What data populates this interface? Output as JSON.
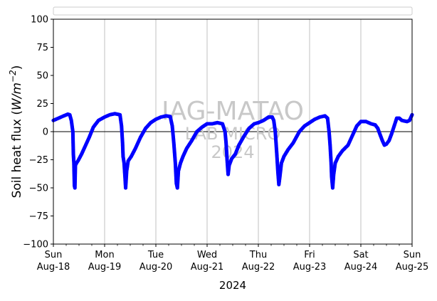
{
  "chart_data": {
    "type": "scatter",
    "title": "",
    "xlabel": "2024",
    "ylabel": "Soil heat flux (W/m⁻²)",
    "ylabel_parts": {
      "main": "Soil heat flux (",
      "unit": "W/m",
      "exp": "−2",
      "close": ")"
    },
    "ylim": [
      -100,
      100
    ],
    "y_ticks": [
      100,
      75,
      50,
      25,
      0,
      -25,
      -50,
      -75,
      -100
    ],
    "y_tick_labels": [
      "100",
      "75",
      "50",
      "25",
      "0",
      "−25",
      "−50",
      "−75",
      "−100"
    ],
    "xlim_days": [
      0,
      7
    ],
    "x_ticks": [
      {
        "day": 0,
        "line1": "Sun",
        "line2": "Aug-18"
      },
      {
        "day": 1,
        "line1": "Mon",
        "line2": "Aug-19"
      },
      {
        "day": 2,
        "line1": "Tue",
        "line2": "Aug-20"
      },
      {
        "day": 3,
        "line1": "Wed",
        "line2": "Aug-21"
      },
      {
        "day": 4,
        "line1": "Thu",
        "line2": "Aug-22"
      },
      {
        "day": 5,
        "line1": "Fri",
        "line2": "Aug-23"
      },
      {
        "day": 6,
        "line1": "Sat",
        "line2": "Aug-24"
      },
      {
        "day": 7,
        "line1": "Sun",
        "line2": "Aug-25"
      }
    ],
    "vertical_grid": true,
    "horizontal_line_at": 0,
    "legend_placement": "top",
    "legend_entries": [],
    "series": [
      {
        "color": "#0000ff",
        "marker": "dot",
        "days": [
          [
            0.0,
            10
          ],
          [
            0.1,
            12
          ],
          [
            0.2,
            14
          ],
          [
            0.28,
            15.5
          ],
          [
            0.32,
            15
          ],
          [
            0.35,
            10
          ],
          [
            0.38,
            0
          ],
          [
            0.39,
            -20
          ],
          [
            0.4,
            -28
          ],
          [
            0.41,
            -48
          ],
          [
            0.42,
            -50
          ],
          [
            0.43,
            -30
          ],
          [
            0.45,
            -28
          ],
          [
            0.48,
            -26
          ],
          [
            0.55,
            -20
          ],
          [
            0.62,
            -13
          ],
          [
            0.7,
            -5
          ],
          [
            0.78,
            4
          ],
          [
            0.88,
            10
          ],
          [
            1.0,
            13
          ],
          [
            1.1,
            15
          ],
          [
            1.2,
            16
          ],
          [
            1.3,
            15
          ],
          [
            1.33,
            5
          ],
          [
            1.35,
            -10
          ],
          [
            1.36,
            -22
          ],
          [
            1.38,
            -28
          ],
          [
            1.4,
            -42
          ],
          [
            1.41,
            -50
          ],
          [
            1.43,
            -35
          ],
          [
            1.46,
            -26
          ],
          [
            1.52,
            -22
          ],
          [
            1.6,
            -15
          ],
          [
            1.7,
            -5
          ],
          [
            1.8,
            3
          ],
          [
            1.9,
            8
          ],
          [
            2.0,
            11
          ],
          [
            2.1,
            13
          ],
          [
            2.2,
            14
          ],
          [
            2.28,
            13.5
          ],
          [
            2.32,
            5
          ],
          [
            2.35,
            -10
          ],
          [
            2.38,
            -28
          ],
          [
            2.4,
            -46
          ],
          [
            2.42,
            -50
          ],
          [
            2.44,
            -35
          ],
          [
            2.48,
            -28
          ],
          [
            2.53,
            -22
          ],
          [
            2.6,
            -15
          ],
          [
            2.7,
            -8
          ],
          [
            2.8,
            0
          ],
          [
            2.9,
            4
          ],
          [
            3.0,
            7
          ],
          [
            3.1,
            7
          ],
          [
            3.2,
            8
          ],
          [
            3.3,
            7
          ],
          [
            3.35,
            0
          ],
          [
            3.37,
            -10
          ],
          [
            3.39,
            -25
          ],
          [
            3.41,
            -38
          ],
          [
            3.43,
            -30
          ],
          [
            3.48,
            -24
          ],
          [
            3.55,
            -20
          ],
          [
            3.62,
            -12
          ],
          [
            3.72,
            -4
          ],
          [
            3.82,
            3
          ],
          [
            3.92,
            7
          ],
          [
            4.0,
            8
          ],
          [
            4.1,
            10
          ],
          [
            4.2,
            13
          ],
          [
            4.27,
            13
          ],
          [
            4.3,
            10
          ],
          [
            4.33,
            0
          ],
          [
            4.36,
            -20
          ],
          [
            4.38,
            -35
          ],
          [
            4.4,
            -47
          ],
          [
            4.42,
            -40
          ],
          [
            4.45,
            -28
          ],
          [
            4.5,
            -22
          ],
          [
            4.58,
            -16
          ],
          [
            4.68,
            -10
          ],
          [
            4.8,
            0
          ],
          [
            4.9,
            5
          ],
          [
            5.0,
            8
          ],
          [
            5.1,
            11
          ],
          [
            5.2,
            13
          ],
          [
            5.3,
            14
          ],
          [
            5.35,
            12
          ],
          [
            5.38,
            0
          ],
          [
            5.4,
            -12
          ],
          [
            5.42,
            -28
          ],
          [
            5.43,
            -40
          ],
          [
            5.45,
            -50
          ],
          [
            5.47,
            -38
          ],
          [
            5.5,
            -28
          ],
          [
            5.56,
            -22
          ],
          [
            5.64,
            -17
          ],
          [
            5.75,
            -12
          ],
          [
            5.85,
            -2
          ],
          [
            5.92,
            5
          ],
          [
            6.0,
            9
          ],
          [
            6.1,
            9
          ],
          [
            6.2,
            7
          ],
          [
            6.28,
            6
          ],
          [
            6.33,
            3
          ],
          [
            6.37,
            -2
          ],
          [
            6.42,
            -8
          ],
          [
            6.46,
            -12
          ],
          [
            6.5,
            -11
          ],
          [
            6.55,
            -8
          ],
          [
            6.6,
            -2
          ],
          [
            6.65,
            5
          ],
          [
            6.7,
            12
          ],
          [
            6.75,
            12
          ],
          [
            6.8,
            10
          ],
          [
            6.9,
            9
          ],
          [
            6.95,
            10
          ],
          [
            7.0,
            15
          ]
        ]
      }
    ],
    "watermark": {
      "line1": "IAG-MATAO",
      "line2": "LAB MICRO",
      "line3": "2024"
    }
  }
}
